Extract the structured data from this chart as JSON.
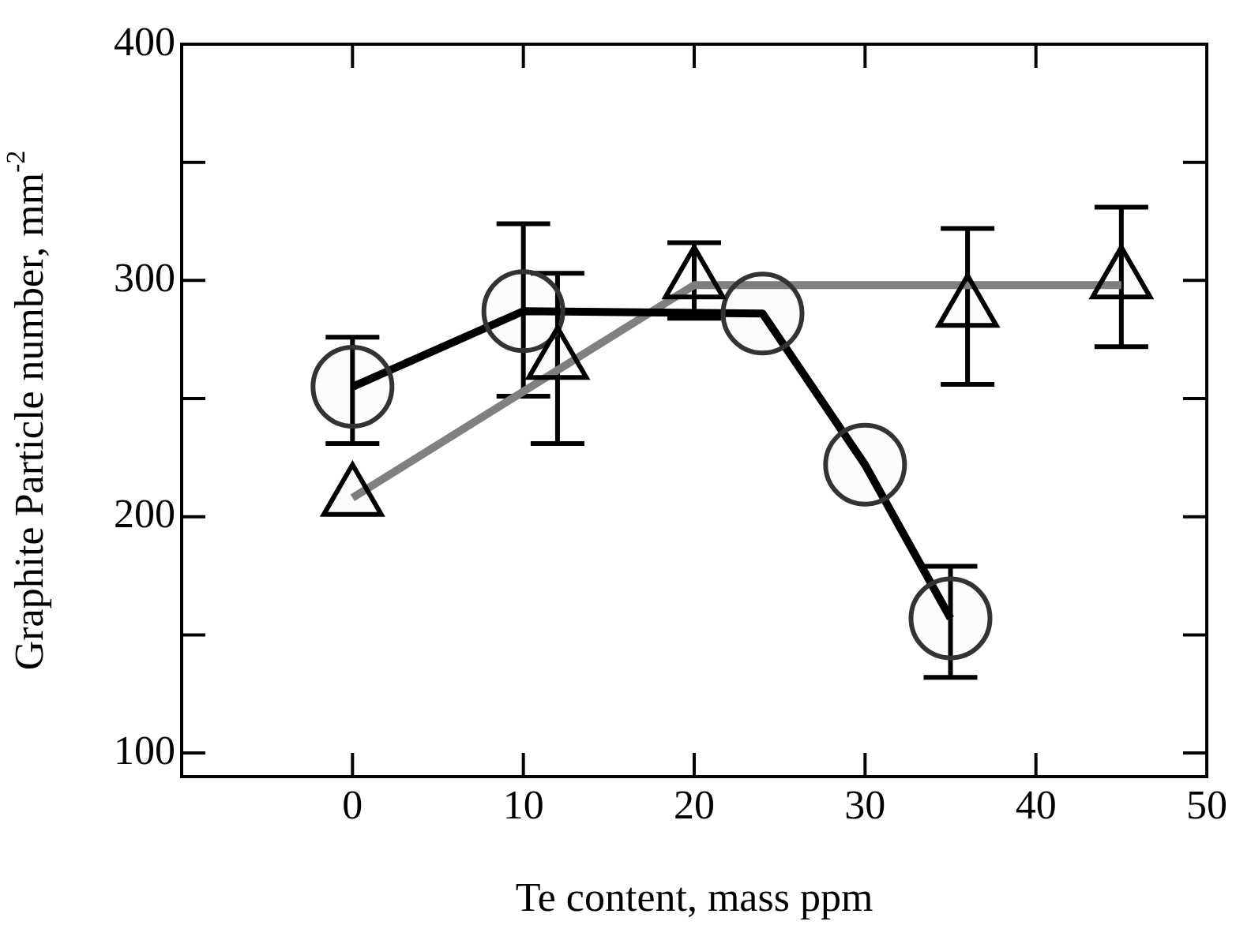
{
  "chart_data": {
    "type": "line",
    "xlabel": "Te content, mass ppm",
    "ylabel": "Graphite Particle number, mm$^{-2}$",
    "xlim": [
      -10,
      50
    ],
    "xticks": [
      0,
      10,
      20,
      30,
      40,
      50
    ],
    "ylim": [
      90,
      400
    ],
    "yticks": [
      100,
      {
        "value": 150,
        "label": null
      },
      200,
      {
        "value": 250,
        "label": null
      },
      300,
      {
        "value": 350,
        "label": null
      },
      400
    ],
    "series": [
      {
        "type": "line",
        "color": "#808080",
        "marker": "none",
        "x": [
          0,
          20,
          45
        ],
        "values": [
          208,
          298,
          298
        ]
      },
      {
        "type": "line",
        "color": "#000000",
        "marker": "circle",
        "x": [
          0,
          10,
          24,
          30,
          35
        ],
        "values": [
          255,
          287,
          286,
          222,
          157
        ],
        "errors": [
          [
            231,
            276
          ],
          [
            251,
            324
          ],
          null,
          null,
          [
            132,
            179
          ]
        ]
      },
      {
        "type": "scatter",
        "color": "#000000",
        "marker": "triangle",
        "x": [
          0,
          12,
          20,
          36,
          45
        ],
        "values": [
          208,
          266,
          300,
          288,
          300
        ],
        "errors": [
          null,
          [
            231,
            303
          ],
          16,
          [
            256,
            322
          ],
          [
            272,
            331
          ]
        ]
      }
    ]
  }
}
